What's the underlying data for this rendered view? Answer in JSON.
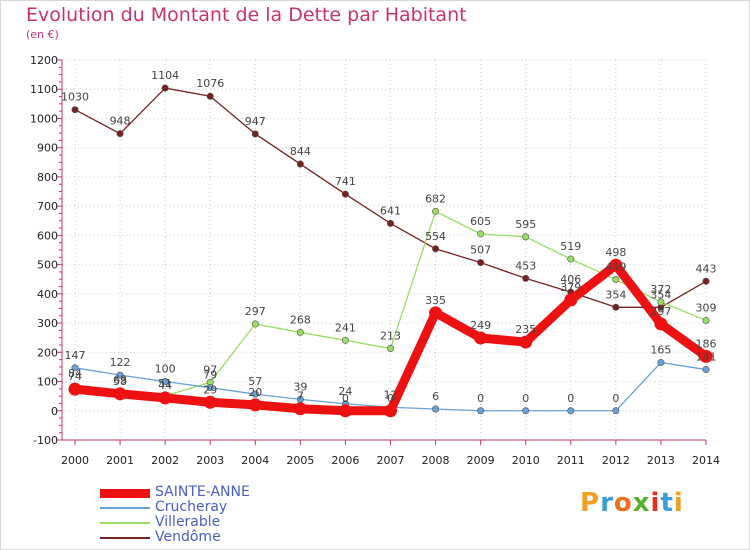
{
  "header": {
    "title": "Evolution du Montant de la Dette par Habitant",
    "subtitle": "(en €)"
  },
  "logo": {
    "text": "Proxiti",
    "colors": [
      "#f0a020",
      "#3a9fd8",
      "#e87020",
      "#58b030",
      "#e83020",
      "#3a9fd8",
      "#f0a020"
    ]
  },
  "chart_data": {
    "type": "line",
    "x": [
      "2000",
      "2001",
      "2002",
      "2003",
      "2004",
      "2005",
      "2006",
      "2007",
      "2008",
      "2009",
      "2010",
      "2011",
      "2012",
      "2013",
      "2014"
    ],
    "ylim": [
      -100,
      1200
    ],
    "yticks": [
      -100,
      0,
      100,
      200,
      300,
      400,
      500,
      600,
      700,
      800,
      900,
      1000,
      1100,
      1200
    ],
    "grid": true,
    "legend_position": "bottom-left",
    "series": [
      {
        "name": "SAINTE-ANNE",
        "color": "#ee1111",
        "values": [
          74,
          58,
          44,
          29,
          20,
          7,
          0,
          0,
          335,
          249,
          235,
          379,
          498,
          297,
          186
        ],
        "labels": [
          "74",
          "58",
          "44",
          "29",
          "20",
          "7",
          "0",
          "0",
          "335",
          "249",
          "235",
          "379",
          "498",
          "297",
          "186"
        ]
      },
      {
        "name": "Crucheray",
        "color": "#6aa0d8",
        "values": [
          147,
          122,
          100,
          79,
          57,
          39,
          24,
          12,
          6,
          0,
          0,
          0,
          0,
          165,
          141
        ],
        "labels": [
          "147",
          "122",
          "100",
          "79",
          "57",
          "39",
          "24",
          "12",
          "6",
          "0",
          "0",
          "0",
          "0",
          "165",
          "141"
        ]
      },
      {
        "name": "Villerable",
        "color": "#99dd66",
        "values": [
          84,
          63,
          51,
          97,
          297,
          268,
          241,
          213,
          682,
          605,
          595,
          519,
          449,
          372,
          309
        ],
        "labels": [
          "84",
          "63",
          "51",
          "97",
          "297",
          "268",
          "241",
          "213",
          "682",
          "605",
          "595",
          "519",
          "449",
          "372",
          "309"
        ]
      },
      {
        "name": "Vendôme",
        "color": "#772222",
        "values": [
          1030,
          948,
          1104,
          1076,
          947,
          844,
          741,
          641,
          554,
          507,
          453,
          406,
          354,
          354,
          443
        ],
        "labels": [
          "1030",
          "948",
          "1104",
          "1076",
          "947",
          "844",
          "741",
          "641",
          "554",
          "507",
          "453",
          "406",
          "354",
          "354",
          "443"
        ]
      }
    ]
  }
}
